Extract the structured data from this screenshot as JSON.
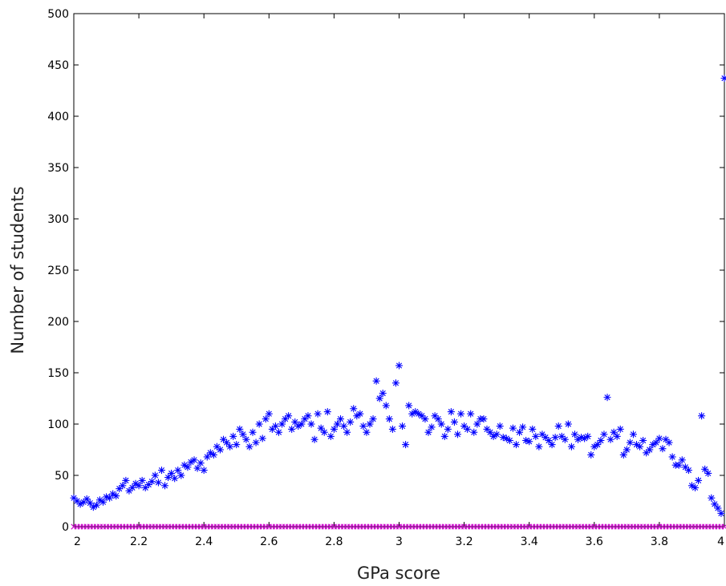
{
  "chart_data": {
    "type": "scatter",
    "title": "",
    "xlabel": "GPa score",
    "ylabel": "Number of students",
    "xlim": [
      2,
      4
    ],
    "ylim": [
      0,
      500
    ],
    "xticks": [
      2,
      2.2,
      2.4,
      2.6,
      2.8,
      3,
      3.2,
      3.4,
      3.6,
      3.8,
      4
    ],
    "xtick_labels": [
      "2",
      "2.2",
      "2.4",
      "2.6",
      "2.8",
      "3",
      "3.2",
      "3.4",
      "3.6",
      "3.8",
      "4"
    ],
    "yticks": [
      0,
      50,
      100,
      150,
      200,
      250,
      300,
      350,
      400,
      450,
      500
    ],
    "ytick_labels": [
      "0",
      "50",
      "100",
      "150",
      "200",
      "250",
      "300",
      "350",
      "400",
      "450",
      "500"
    ],
    "grid": false,
    "series": [
      {
        "marker": "asterisk",
        "color": "#0000ff",
        "x": [
          2.0,
          2.01,
          2.02,
          2.03,
          2.04,
          2.05,
          2.06,
          2.07,
          2.08,
          2.09,
          2.1,
          2.11,
          2.12,
          2.13,
          2.14,
          2.15,
          2.16,
          2.17,
          2.18,
          2.19,
          2.2,
          2.21,
          2.22,
          2.23,
          2.24,
          2.25,
          2.26,
          2.27,
          2.28,
          2.29,
          2.3,
          2.31,
          2.32,
          2.33,
          2.34,
          2.35,
          2.36,
          2.37,
          2.38,
          2.39,
          2.4,
          2.41,
          2.42,
          2.43,
          2.44,
          2.45,
          2.46,
          2.47,
          2.48,
          2.49,
          2.5,
          2.51,
          2.52,
          2.53,
          2.54,
          2.55,
          2.56,
          2.57,
          2.58,
          2.59,
          2.6,
          2.61,
          2.62,
          2.63,
          2.64,
          2.65,
          2.66,
          2.67,
          2.68,
          2.69,
          2.7,
          2.71,
          2.72,
          2.73,
          2.74,
          2.75,
          2.76,
          2.77,
          2.78,
          2.79,
          2.8,
          2.81,
          2.82,
          2.83,
          2.84,
          2.85,
          2.86,
          2.87,
          2.88,
          2.89,
          2.9,
          2.91,
          2.92,
          2.93,
          2.94,
          2.95,
          2.96,
          2.97,
          2.98,
          2.99,
          3.0,
          3.01,
          3.02,
          3.03,
          3.04,
          3.05,
          3.06,
          3.07,
          3.08,
          3.09,
          3.1,
          3.11,
          3.12,
          3.13,
          3.14,
          3.15,
          3.16,
          3.17,
          3.18,
          3.19,
          3.2,
          3.21,
          3.22,
          3.23,
          3.24,
          3.25,
          3.26,
          3.27,
          3.28,
          3.29,
          3.3,
          3.31,
          3.32,
          3.33,
          3.34,
          3.35,
          3.36,
          3.37,
          3.38,
          3.39,
          3.4,
          3.41,
          3.42,
          3.43,
          3.44,
          3.45,
          3.46,
          3.47,
          3.48,
          3.49,
          3.5,
          3.51,
          3.52,
          3.53,
          3.54,
          3.55,
          3.56,
          3.57,
          3.58,
          3.59,
          3.6,
          3.61,
          3.62,
          3.63,
          3.64,
          3.65,
          3.66,
          3.67,
          3.68,
          3.69,
          3.7,
          3.71,
          3.72,
          3.73,
          3.74,
          3.75,
          3.76,
          3.77,
          3.78,
          3.79,
          3.8,
          3.81,
          3.82,
          3.83,
          3.84,
          3.85,
          3.86,
          3.87,
          3.88,
          3.89,
          3.9,
          3.91,
          3.92,
          3.93,
          3.94,
          3.95,
          3.96,
          3.97,
          3.98,
          3.99,
          4.0
        ],
        "y": [
          28,
          25,
          22,
          24,
          27,
          23,
          19,
          21,
          26,
          24,
          29,
          28,
          32,
          30,
          37,
          40,
          45,
          35,
          38,
          42,
          40,
          45,
          38,
          41,
          44,
          50,
          43,
          55,
          40,
          48,
          52,
          47,
          55,
          50,
          60,
          58,
          63,
          65,
          57,
          62,
          55,
          68,
          72,
          70,
          78,
          75,
          85,
          82,
          78,
          88,
          80,
          95,
          90,
          85,
          78,
          92,
          82,
          100,
          86,
          105,
          110,
          95,
          98,
          92,
          100,
          105,
          108,
          95,
          102,
          98,
          100,
          105,
          108,
          100,
          85,
          110,
          96,
          92,
          112,
          88,
          95,
          100,
          105,
          98,
          92,
          102,
          115,
          108,
          110,
          98,
          92,
          100,
          105,
          142,
          125,
          130,
          118,
          105,
          95,
          140,
          157,
          98,
          80,
          118,
          110,
          112,
          110,
          108,
          105,
          92,
          97,
          108,
          105,
          100,
          88,
          95,
          112,
          102,
          90,
          110,
          98,
          95,
          110,
          92,
          100,
          105,
          105,
          95,
          92,
          88,
          90,
          98,
          87,
          86,
          84,
          96,
          80,
          92,
          97,
          84,
          83,
          95,
          88,
          78,
          90,
          87,
          84,
          80,
          87,
          98,
          88,
          85,
          100,
          78,
          90,
          85,
          87,
          86,
          88,
          70,
          78,
          80,
          84,
          90,
          126,
          85,
          92,
          88,
          95,
          70,
          75,
          82,
          90,
          80,
          78,
          84,
          72,
          75,
          80,
          82,
          86,
          76,
          85,
          82,
          68,
          60,
          60,
          65,
          58,
          55,
          40,
          38,
          45,
          108,
          56,
          52,
          28,
          22,
          18,
          13,
          437
        ]
      },
      {
        "marker": "x",
        "color": "#cc00cc",
        "baseline_value": 0
      }
    ]
  }
}
